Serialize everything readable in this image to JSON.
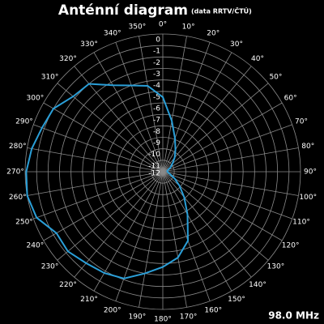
{
  "chart_data": {
    "type": "polar",
    "title": "Anténní diagram",
    "subtitle": "(data RRTV/ČTÚ)",
    "annotation": "98.0 MHz",
    "theta": [
      0,
      10,
      20,
      30,
      40,
      50,
      60,
      70,
      80,
      90,
      100,
      110,
      120,
      130,
      140,
      150,
      160,
      170,
      180,
      190,
      200,
      210,
      220,
      230,
      240,
      250,
      260,
      270,
      280,
      290,
      300,
      310,
      320,
      330,
      340,
      350
    ],
    "values": [
      -5.5,
      -7.5,
      -8.9,
      -9.8,
      -10.4,
      -10.9,
      -11.2,
      -11.5,
      -11.6,
      -11.6,
      -11.5,
      -11.3,
      -10.8,
      -10.1,
      -9.1,
      -7.7,
      -5.6,
      -4.4,
      -3.7,
      -3,
      -2.1,
      -1.8,
      -1.6,
      -1.2,
      -1.3,
      -0.3,
      0,
      -0.1,
      -0.4,
      -0.8,
      -1,
      -1.8,
      -2,
      -3.3,
      -4,
      -4.4
    ],
    "color": "#2a9fd8",
    "rlim": [
      -12,
      0
    ],
    "rticks": [
      0,
      -1,
      -2,
      -3,
      -4,
      -5,
      -6,
      -7,
      -8,
      -9,
      -10,
      -11,
      -12
    ],
    "thetaticks": [
      {
        "value": 0,
        "label": "0°"
      },
      {
        "value": 10,
        "label": "10°"
      },
      {
        "value": 20,
        "label": "20°"
      },
      {
        "value": 30,
        "label": "30°"
      },
      {
        "value": 40,
        "label": "40°"
      },
      {
        "value": 50,
        "label": "50°"
      },
      {
        "value": 60,
        "label": "60°"
      },
      {
        "value": 70,
        "label": "70°"
      },
      {
        "value": 80,
        "label": "80°"
      },
      {
        "value": 90,
        "label": "90°"
      },
      {
        "value": 100,
        "label": "100°"
      },
      {
        "value": 110,
        "label": "110°"
      },
      {
        "value": 120,
        "label": "120°"
      },
      {
        "value": 130,
        "label": "130°"
      },
      {
        "value": 140,
        "label": "140°"
      },
      {
        "value": 150,
        "label": "150°"
      },
      {
        "value": 160,
        "label": "160°"
      },
      {
        "value": 170,
        "label": "170°"
      },
      {
        "value": 180,
        "label": "180°"
      },
      {
        "value": 190,
        "label": "190°"
      },
      {
        "value": 200,
        "label": "200°"
      },
      {
        "value": 210,
        "label": "210°"
      },
      {
        "value": 220,
        "label": "220°"
      },
      {
        "value": 230,
        "label": "230°"
      },
      {
        "value": 240,
        "label": "240°"
      },
      {
        "value": 250,
        "label": "250°"
      },
      {
        "value": 260,
        "label": "260°"
      },
      {
        "value": 270,
        "label": "270°"
      },
      {
        "value": 280,
        "label": "280°"
      },
      {
        "value": 290,
        "label": "290°"
      },
      {
        "value": 300,
        "label": "300°"
      },
      {
        "value": 310,
        "label": "310°"
      },
      {
        "value": 320,
        "label": "320°"
      },
      {
        "value": 330,
        "label": "330°"
      },
      {
        "value": 340,
        "label": "340°"
      },
      {
        "value": 350,
        "label": "350°"
      }
    ]
  }
}
